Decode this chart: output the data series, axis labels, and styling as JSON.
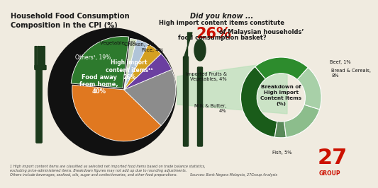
{
  "title_left": "Household Food Consumption\nComposition in the CPI (%)",
  "title_right_line1": "Did you know ...",
  "title_right_line2": "High import content items constitute",
  "title_right_highlight": "26%",
  "title_right_line3": " of Malaysian households’",
  "title_right_line4": "food consumption basket?",
  "pie1_values": [
    26,
    40,
    19,
    6,
    5,
    4,
    2
  ],
  "pie1_colors": [
    "#2d7a2d",
    "#e07820",
    "#8c8c8c",
    "#6b3fa0",
    "#d4a020",
    "#b0c4d8",
    "#c8d8b8"
  ],
  "pie2_values": [
    8,
    1,
    4,
    4,
    5
  ],
  "pie2_colors": [
    "#1a5c1a",
    "#5a8a5a",
    "#8cbd8c",
    "#a8d0a8",
    "#2d8c2d"
  ],
  "pie2_center_text": "Breakdown of\nHigh Import\nContent Items\n(%)",
  "background_color": "#f0ebe0",
  "plate_color": "#111111",
  "footnote1": "1 High import content items are classified as selected net imported food items based on trade balance statistics,",
  "footnote2": "excluding price-administered items. Breakdown figures may not add up due to rounding adjustments.",
  "footnote3": "Others include beverages, seafood, oils, sugar and confectionaries, and other food preparations.",
  "source": "Sources: Bank Negara Malaysia, 27Group Analysis",
  "logo_text": "27",
  "logo_sub": "GROUP",
  "connector_color": "#b8e0b8",
  "utensil_color": "#1c3a1c"
}
